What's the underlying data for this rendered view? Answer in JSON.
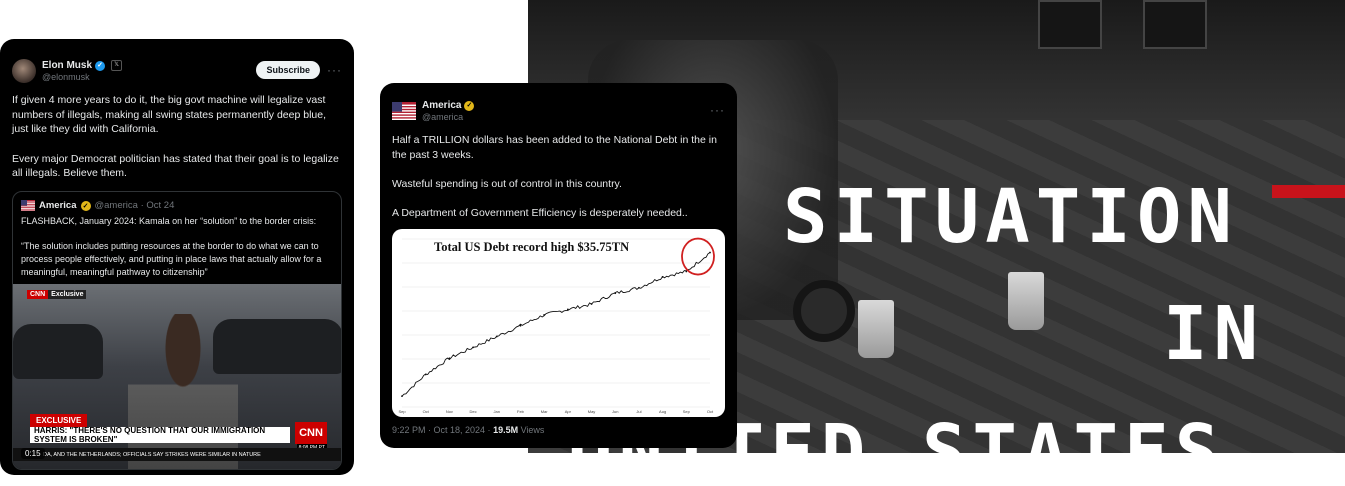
{
  "background_photo": {
    "title_line1": "SITUATION",
    "title_line2": "IN",
    "title_line3": "UNITED STATES",
    "accent_color": "#c8131b"
  },
  "tweet_musk": {
    "author_name": "Elon Musk",
    "author_handle": "@elonmusk",
    "subscribe_label": "Subscribe",
    "more_label": "···",
    "text": "If given 4 more years to do it, the big govt machine will legalize vast numbers of illegals, making all swing states permanently deep blue, just like they did with California.\n\nEvery major Democrat politician has stated that their goal is to legalize all illegals. Believe them.",
    "quote": {
      "author_name": "America",
      "meta": "@america · Oct 24",
      "text": "FLASHBACK, January 2024: Kamala on her “solution” to the border crisis:\n\n“The solution includes putting resources at the border to do what we can to process people effectively, and putting in place laws that actually allow for a meaningful, meaningful pathway to citizenship”",
      "video": {
        "network_tag": "CNN",
        "network_tag2": "Exclusive",
        "exclusive_label": "EXCLUSIVE",
        "headline": "HARRIS: \"THERE'S NO QUESTION THAT OUR IMMIGRATION SYSTEM IS BROKEN\"",
        "logo": "CNN",
        "clock": "8:08 PM PT",
        "ticker": "DA, AND THE NETHERLANDS; OFFICIALS SAY STRIKES WERE SIMILAR IN NATURE",
        "duration": "0:15"
      }
    }
  },
  "tweet_america": {
    "author_name": "America",
    "author_handle": "@america",
    "more_label": "···",
    "text": "Half a TRILLION dollars has been added to the National Debt in the in the past 3 weeks.\n\nWasteful spending is out of control in this country.\n\nA Department of Government Efficiency is desperately needed..",
    "footer_time": "9:22 PM · Oct 18, 2024 · ",
    "footer_views": "19.5M",
    "footer_views_label": " Views"
  },
  "chart_data": {
    "type": "line",
    "title": "Total US Debt record high $35.75TN",
    "x": [
      "Sep",
      "Oct",
      "Nov",
      "Dec",
      "Jan",
      "Feb",
      "Mar",
      "Apr",
      "May",
      "Jun",
      "Jul",
      "Aug",
      "Sep",
      "Oct"
    ],
    "series": [
      {
        "values": [
          33.1,
          33.5,
          33.8,
          34.0,
          34.2,
          34.4,
          34.6,
          34.7,
          34.8,
          35.0,
          35.1,
          35.3,
          35.4,
          35.75
        ]
      }
    ],
    "line_color": "#111111",
    "highlight_color": "#d02020",
    "grid": true
  }
}
